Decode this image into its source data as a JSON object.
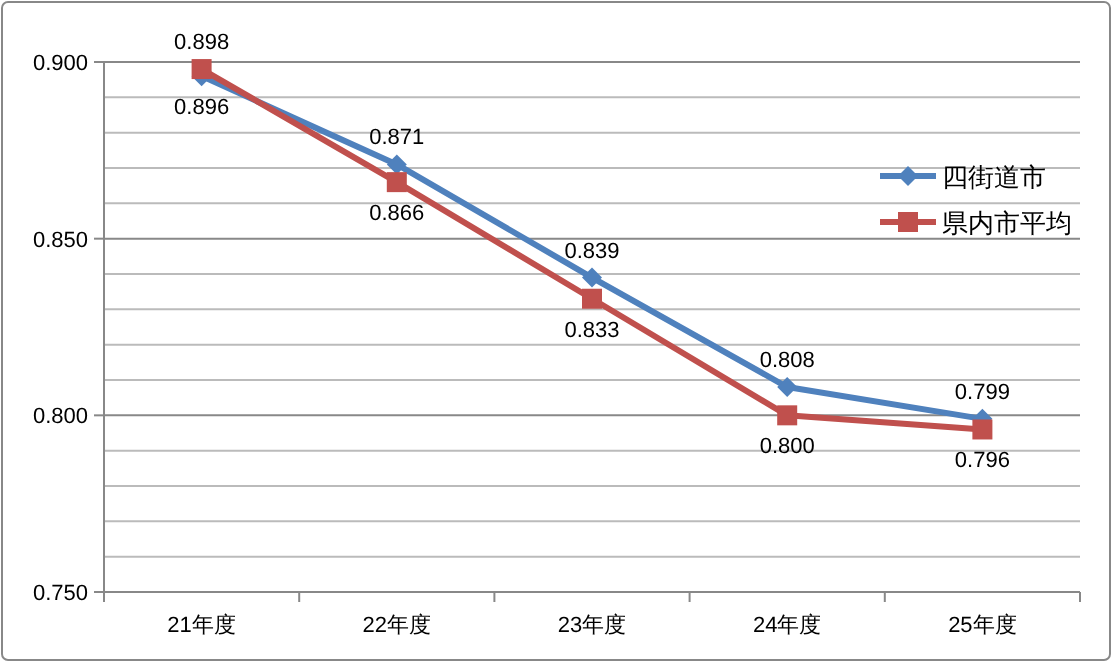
{
  "chart_data": {
    "type": "line",
    "categories": [
      "21年度",
      "22年度",
      "23年度",
      "24年度",
      "25年度"
    ],
    "series": [
      {
        "name": "四街道市",
        "color": "#4f81bd",
        "marker": "diamond",
        "values": [
          0.896,
          0.871,
          0.839,
          0.808,
          0.799
        ],
        "value_labels": [
          "0.896",
          "0.871",
          "0.839",
          "0.808",
          "0.799"
        ]
      },
      {
        "name": "県内市平均",
        "color": "#c0504d",
        "marker": "square",
        "values": [
          0.898,
          0.866,
          0.833,
          0.8,
          0.796
        ],
        "value_labels": [
          "0.898",
          "0.866",
          "0.833",
          "0.800",
          "0.796"
        ]
      }
    ],
    "ylim": [
      0.75,
      0.9
    ],
    "yticks": [
      {
        "value": 0.75,
        "label": "0.750"
      },
      {
        "value": 0.76,
        "label": null
      },
      {
        "value": 0.77,
        "label": null
      },
      {
        "value": 0.78,
        "label": null
      },
      {
        "value": 0.79,
        "label": null
      },
      {
        "value": 0.8,
        "label": "0.800"
      },
      {
        "value": 0.81,
        "label": null
      },
      {
        "value": 0.82,
        "label": null
      },
      {
        "value": 0.83,
        "label": null
      },
      {
        "value": 0.84,
        "label": null
      },
      {
        "value": 0.85,
        "label": "0.850"
      },
      {
        "value": 0.86,
        "label": null
      },
      {
        "value": 0.87,
        "label": null
      },
      {
        "value": 0.88,
        "label": null
      },
      {
        "value": 0.89,
        "label": null
      },
      {
        "value": 0.9,
        "label": "0.900"
      }
    ],
    "grid": "y",
    "legend": "right",
    "line_style": "solid"
  }
}
